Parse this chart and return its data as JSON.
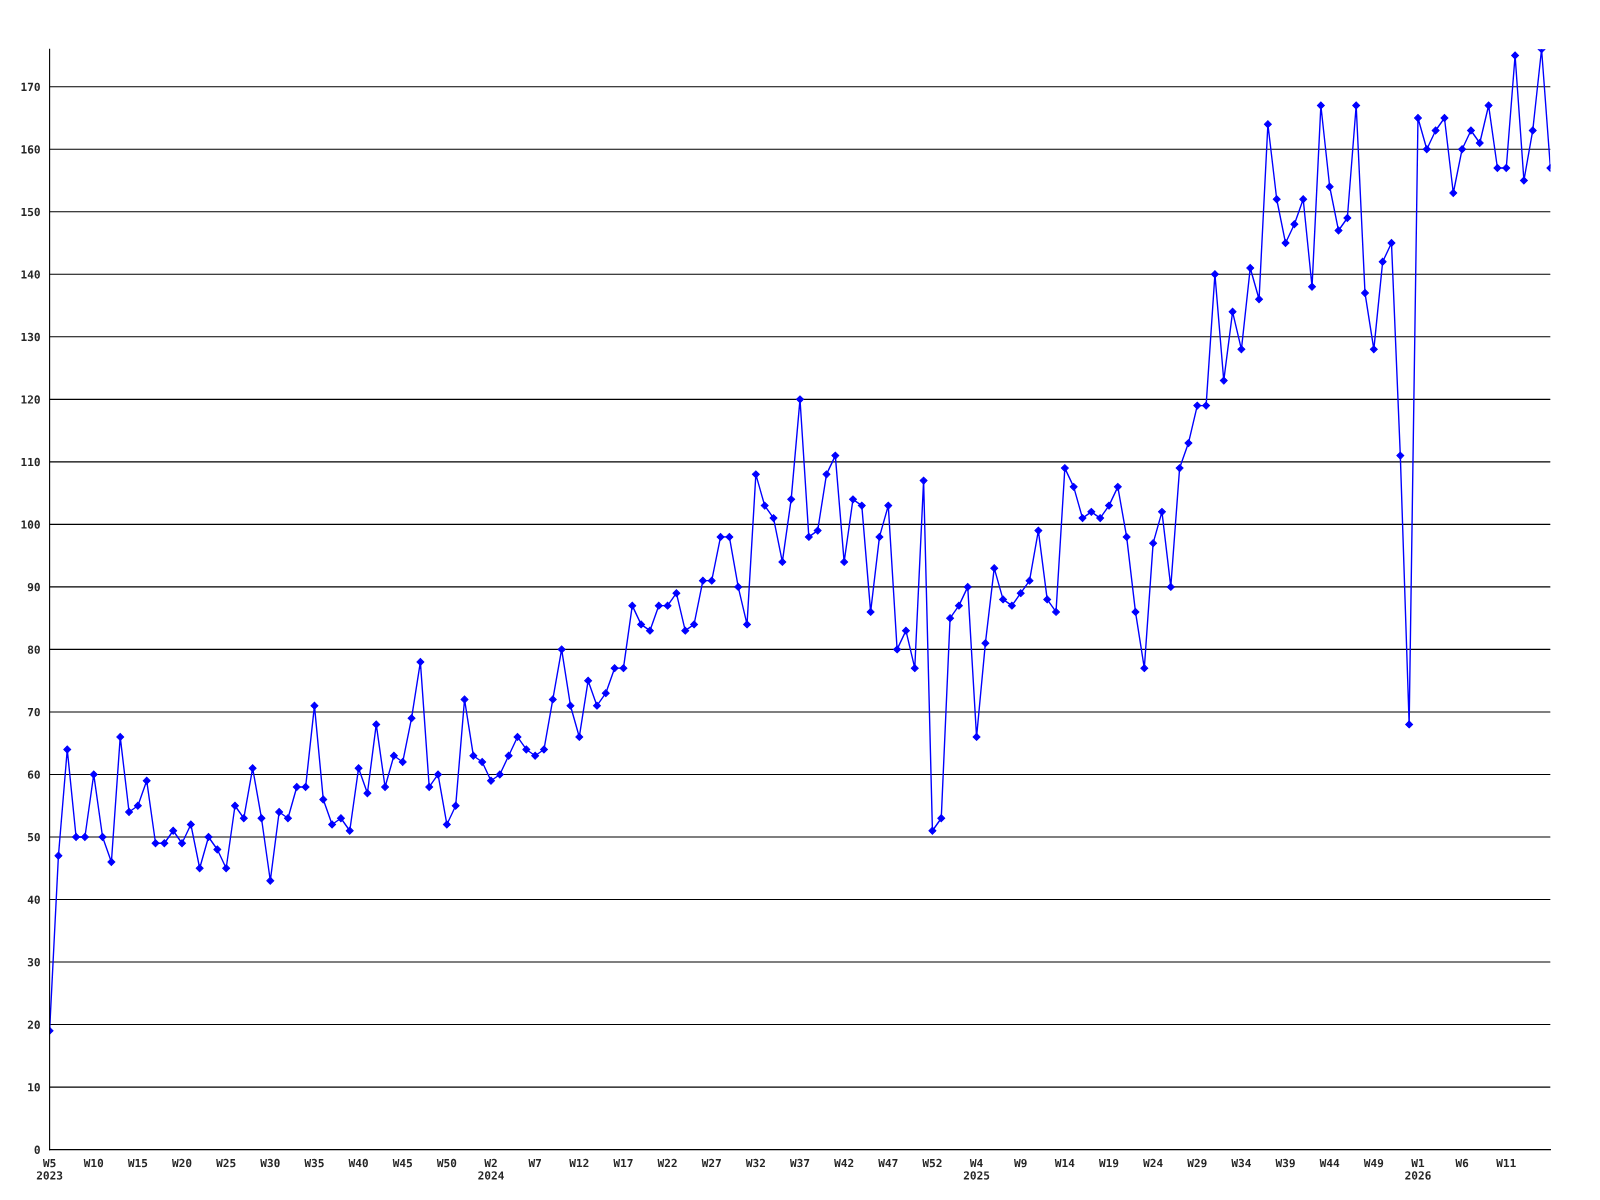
{
  "chart_data": {
    "type": "line",
    "categories": [
      "W5\n2023",
      null,
      null,
      null,
      null,
      "W10",
      null,
      null,
      null,
      null,
      "W15",
      null,
      null,
      null,
      null,
      "W20",
      null,
      null,
      null,
      null,
      "W25",
      null,
      null,
      null,
      null,
      "W30",
      null,
      null,
      null,
      null,
      "W35",
      null,
      null,
      null,
      null,
      "W40",
      null,
      null,
      null,
      null,
      "W45",
      null,
      null,
      null,
      null,
      "W50",
      null,
      null,
      null,
      null,
      "W2\n2024",
      null,
      null,
      null,
      null,
      "W7",
      null,
      null,
      null,
      null,
      "W12",
      null,
      null,
      null,
      null,
      "W17",
      null,
      null,
      null,
      null,
      "W22",
      null,
      null,
      null,
      null,
      "W27",
      null,
      null,
      null,
      null,
      "W32",
      null,
      null,
      null,
      null,
      "W37",
      null,
      null,
      null,
      null,
      "W42",
      null,
      null,
      null,
      null,
      "W47",
      null,
      null,
      null,
      null,
      "W52",
      null,
      null,
      null,
      null,
      "W4\n2025",
      null,
      null,
      null,
      null,
      "W9",
      null,
      null,
      null,
      null,
      "W14",
      null,
      null,
      null,
      null,
      "W19",
      null,
      null,
      null,
      null,
      "W24",
      null,
      null,
      null,
      null,
      "W29",
      null,
      null,
      null,
      null,
      "W34",
      null,
      null,
      null,
      null,
      "W39",
      null,
      null,
      null,
      null,
      "W44",
      null,
      null,
      null,
      null,
      "W49",
      null,
      null,
      null,
      null,
      "W1\n2026",
      null,
      null,
      null,
      null,
      "W6",
      null,
      null,
      null,
      null,
      "W11",
      null,
      null,
      null,
      null,
      null
    ],
    "series": [
      {
        "color": "#0000ff",
        "values": [
          19,
          47,
          64,
          50,
          50,
          60,
          50,
          46,
          66,
          54,
          55,
          59,
          49,
          49,
          51,
          49,
          52,
          45,
          50,
          48,
          45,
          55,
          53,
          61,
          53,
          43,
          54,
          53,
          58,
          58,
          71,
          56,
          52,
          53,
          51,
          61,
          57,
          68,
          58,
          63,
          62,
          69,
          78,
          58,
          60,
          52,
          55,
          72,
          63,
          62,
          59,
          60,
          63,
          66,
          64,
          63,
          64,
          72,
          80,
          71,
          66,
          75,
          71,
          73,
          77,
          77,
          87,
          84,
          83,
          87,
          87,
          89,
          83,
          84,
          91,
          91,
          98,
          98,
          90,
          84,
          108,
          103,
          101,
          94,
          104,
          120,
          98,
          99,
          108,
          111,
          94,
          104,
          103,
          86,
          98,
          103,
          80,
          83,
          77,
          107,
          51,
          53,
          85,
          87,
          90,
          66,
          81,
          93,
          88,
          87,
          89,
          91,
          99,
          88,
          86,
          109,
          106,
          101,
          102,
          101,
          103,
          106,
          98,
          86,
          77,
          97,
          102,
          90,
          109,
          113,
          119,
          119,
          140,
          123,
          134,
          128,
          141,
          136,
          164,
          152,
          145,
          148,
          152,
          138,
          167,
          154,
          147,
          149,
          167,
          137,
          128,
          142,
          145,
          111,
          68,
          165,
          160,
          163,
          165,
          153,
          160,
          163,
          161,
          167,
          157,
          157,
          175,
          155,
          163,
          176,
          157
        ]
      }
    ],
    "ylim": [
      0,
      176
    ],
    "yticks": [
      0,
      10,
      20,
      30,
      40,
      50,
      60,
      70,
      80,
      90,
      100,
      110,
      120,
      130,
      140,
      150,
      160,
      170
    ],
    "grid": "y",
    "marker": "diamond",
    "line_style": "solid"
  }
}
